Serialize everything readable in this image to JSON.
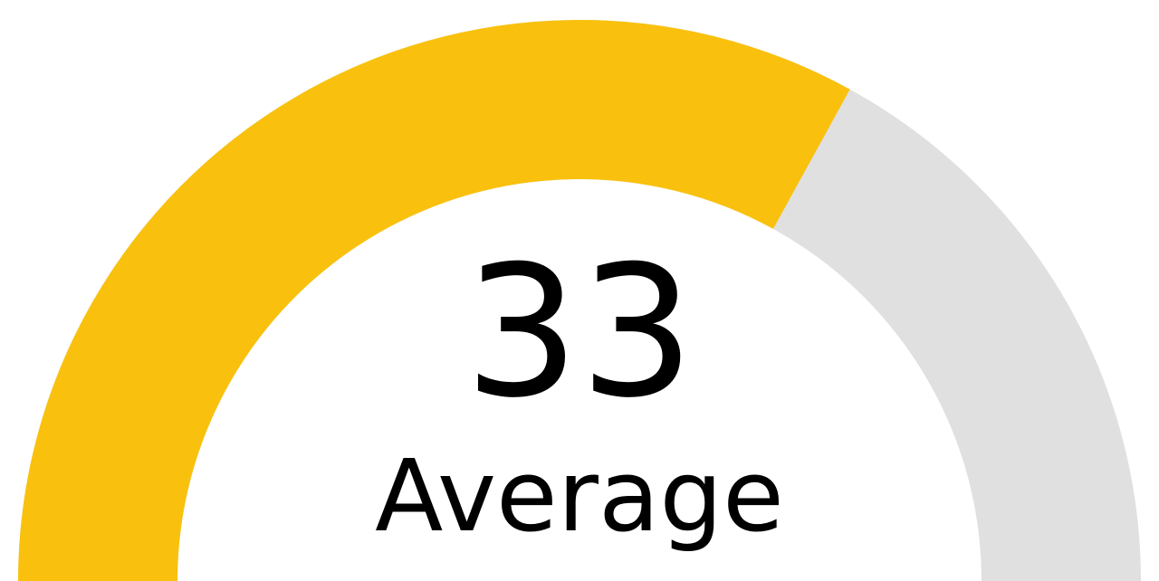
{
  "chart_data": {
    "type": "gauge",
    "value": 33,
    "label": "Average",
    "min": 0,
    "max": 50,
    "filled_color": "#F9C10E",
    "track_color": "#E0E0E0"
  }
}
